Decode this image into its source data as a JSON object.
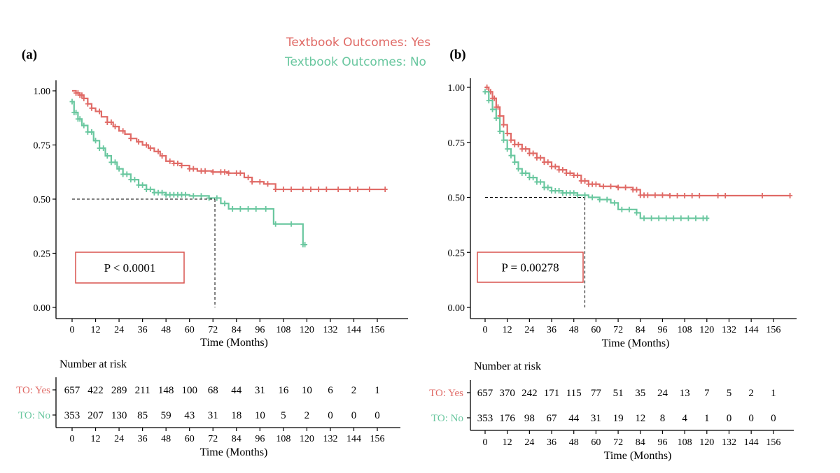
{
  "legend": {
    "items": [
      {
        "label": "Textbook Outcomes: Yes",
        "color": "#e06a66"
      },
      {
        "label": "Textbook Outcomes: No",
        "color": "#69c79f"
      }
    ]
  },
  "colors": {
    "yes": "#e06a66",
    "no": "#69c79f",
    "axis": "#000000",
    "pbox": "#d9534f"
  },
  "chart_data": [
    {
      "panel_label": "(a)",
      "type": "line",
      "subtype": "kaplan-meier step",
      "xlabel": "Time (Months)",
      "ylabel": "",
      "x_ticks": [
        0,
        12,
        24,
        36,
        48,
        60,
        72,
        84,
        96,
        108,
        120,
        132,
        144,
        156
      ],
      "y_ticks": [
        "0.00",
        "0.25",
        "0.50",
        "0.75",
        "1.00"
      ],
      "xlim": [
        0,
        170
      ],
      "ylim": [
        0,
        1
      ],
      "p_value_text": "P < 0.0001",
      "median_line": {
        "y": 0.5,
        "x": 73
      },
      "series": [
        {
          "name": "Textbook Outcomes: Yes",
          "color": "#e06a66",
          "points": [
            [
              0,
              1.0
            ],
            [
              2,
              0.99
            ],
            [
              4,
              0.98
            ],
            [
              6,
              0.965
            ],
            [
              8,
              0.94
            ],
            [
              10,
              0.92
            ],
            [
              12,
              0.905
            ],
            [
              15,
              0.88
            ],
            [
              18,
              0.855
            ],
            [
              21,
              0.835
            ],
            [
              24,
              0.815
            ],
            [
              27,
              0.8
            ],
            [
              30,
              0.78
            ],
            [
              33,
              0.765
            ],
            [
              36,
              0.75
            ],
            [
              39,
              0.735
            ],
            [
              42,
              0.72
            ],
            [
              45,
              0.7
            ],
            [
              48,
              0.675
            ],
            [
              52,
              0.665
            ],
            [
              56,
              0.655
            ],
            [
              60,
              0.64
            ],
            [
              64,
              0.63
            ],
            [
              72,
              0.625
            ],
            [
              80,
              0.62
            ],
            [
              88,
              0.6
            ],
            [
              92,
              0.58
            ],
            [
              98,
              0.57
            ],
            [
              104,
              0.545
            ],
            [
              160,
              0.545
            ]
          ],
          "censor_x": [
            2,
            3,
            4,
            5,
            6,
            8,
            10,
            14,
            18,
            20,
            22,
            26,
            30,
            34,
            38,
            40,
            44,
            46,
            50,
            52,
            54,
            56,
            60,
            62,
            66,
            68,
            72,
            76,
            78,
            80,
            84,
            86,
            90,
            92,
            96,
            100,
            104,
            108,
            112,
            118,
            122,
            126,
            130,
            136,
            142,
            146,
            152,
            160
          ]
        },
        {
          "name": "Textbook Outcomes: No",
          "color": "#69c79f",
          "points": [
            [
              0,
              0.95
            ],
            [
              1,
              0.9
            ],
            [
              3,
              0.87
            ],
            [
              5,
              0.84
            ],
            [
              8,
              0.81
            ],
            [
              11,
              0.77
            ],
            [
              14,
              0.735
            ],
            [
              17,
              0.7
            ],
            [
              20,
              0.67
            ],
            [
              23,
              0.64
            ],
            [
              26,
              0.615
            ],
            [
              30,
              0.59
            ],
            [
              34,
              0.565
            ],
            [
              38,
              0.545
            ],
            [
              42,
              0.53
            ],
            [
              48,
              0.52
            ],
            [
              60,
              0.515
            ],
            [
              70,
              0.505
            ],
            [
              76,
              0.48
            ],
            [
              80,
              0.455
            ],
            [
              102,
              0.455
            ],
            [
              103,
              0.385
            ],
            [
              116,
              0.385
            ],
            [
              118,
              0.29
            ],
            [
              120,
              0.29
            ]
          ],
          "censor_x": [
            0,
            1,
            2,
            3,
            4,
            6,
            8,
            10,
            12,
            14,
            16,
            18,
            20,
            22,
            24,
            26,
            28,
            30,
            32,
            34,
            36,
            38,
            40,
            42,
            44,
            46,
            48,
            50,
            52,
            54,
            56,
            58,
            62,
            66,
            70,
            74,
            78,
            82,
            86,
            90,
            94,
            99,
            104,
            112,
            118,
            119
          ]
        }
      ],
      "risk_table": {
        "title": "Number at risk",
        "x_ticks": [
          0,
          12,
          24,
          36,
          48,
          60,
          72,
          84,
          96,
          108,
          120,
          132,
          144,
          156
        ],
        "xlabel": "Time (Months)",
        "rows": [
          {
            "label": "TO: Yes",
            "color": "#e06a66",
            "values": [
              657,
              422,
              289,
              211,
              148,
              100,
              68,
              44,
              31,
              16,
              10,
              6,
              2,
              1
            ]
          },
          {
            "label": "TO: No",
            "color": "#69c79f",
            "values": [
              353,
              207,
              130,
              85,
              59,
              43,
              31,
              18,
              10,
              5,
              2,
              0,
              0,
              0
            ]
          }
        ]
      }
    },
    {
      "panel_label": "(b)",
      "type": "line",
      "subtype": "kaplan-meier step",
      "xlabel": "Time (Months)",
      "ylabel": "",
      "x_ticks": [
        0,
        12,
        24,
        36,
        48,
        60,
        72,
        84,
        96,
        108,
        120,
        132,
        144,
        156
      ],
      "y_ticks": [
        "0.00",
        "0.25",
        "0.50",
        "0.75",
        "1.00"
      ],
      "xlim": [
        0,
        170
      ],
      "ylim": [
        0,
        1
      ],
      "p_value_text": "P = 0.00278",
      "median_line": {
        "y": 0.5,
        "x": 54
      },
      "series": [
        {
          "name": "Textbook Outcomes: Yes",
          "color": "#e06a66",
          "points": [
            [
              0,
              1.0
            ],
            [
              2,
              0.98
            ],
            [
              4,
              0.95
            ],
            [
              6,
              0.91
            ],
            [
              8,
              0.87
            ],
            [
              10,
              0.83
            ],
            [
              12,
              0.79
            ],
            [
              14,
              0.76
            ],
            [
              16,
              0.74
            ],
            [
              20,
              0.72
            ],
            [
              24,
              0.7
            ],
            [
              28,
              0.68
            ],
            [
              32,
              0.66
            ],
            [
              36,
              0.64
            ],
            [
              40,
              0.625
            ],
            [
              44,
              0.61
            ],
            [
              48,
              0.6
            ],
            [
              52,
              0.575
            ],
            [
              56,
              0.56
            ],
            [
              62,
              0.55
            ],
            [
              72,
              0.545
            ],
            [
              80,
              0.535
            ],
            [
              84,
              0.51
            ],
            [
              100,
              0.508
            ],
            [
              165,
              0.508
            ]
          ],
          "censor_x": [
            1,
            2,
            3,
            4,
            5,
            6,
            7,
            8,
            10,
            12,
            14,
            16,
            18,
            20,
            22,
            24,
            26,
            28,
            30,
            32,
            34,
            36,
            38,
            40,
            42,
            44,
            46,
            48,
            50,
            52,
            54,
            56,
            58,
            60,
            64,
            68,
            72,
            76,
            80,
            82,
            84,
            86,
            88,
            92,
            96,
            100,
            104,
            108,
            112,
            116,
            126,
            130,
            150,
            165
          ]
        },
        {
          "name": "Textbook Outcomes: No",
          "color": "#69c79f",
          "points": [
            [
              0,
              0.98
            ],
            [
              2,
              0.94
            ],
            [
              4,
              0.9
            ],
            [
              6,
              0.86
            ],
            [
              8,
              0.8
            ],
            [
              10,
              0.76
            ],
            [
              12,
              0.72
            ],
            [
              14,
              0.69
            ],
            [
              16,
              0.66
            ],
            [
              18,
              0.63
            ],
            [
              20,
              0.61
            ],
            [
              24,
              0.59
            ],
            [
              28,
              0.57
            ],
            [
              32,
              0.545
            ],
            [
              36,
              0.53
            ],
            [
              42,
              0.52
            ],
            [
              50,
              0.51
            ],
            [
              56,
              0.5
            ],
            [
              62,
              0.49
            ],
            [
              68,
              0.475
            ],
            [
              72,
              0.445
            ],
            [
              82,
              0.43
            ],
            [
              84,
              0.405
            ],
            [
              120,
              0.405
            ]
          ],
          "censor_x": [
            0,
            2,
            4,
            6,
            8,
            10,
            12,
            14,
            16,
            18,
            20,
            22,
            24,
            26,
            28,
            30,
            32,
            34,
            36,
            38,
            40,
            42,
            44,
            46,
            48,
            50,
            54,
            58,
            62,
            66,
            70,
            74,
            78,
            82,
            86,
            90,
            94,
            98,
            102,
            106,
            110,
            114,
            118,
            120
          ]
        }
      ],
      "risk_table": {
        "title": "Number at risk",
        "x_ticks": [
          0,
          12,
          24,
          36,
          48,
          60,
          72,
          84,
          96,
          108,
          120,
          132,
          144,
          156
        ],
        "xlabel": "Time (Months)",
        "rows": [
          {
            "label": "TO: Yes",
            "color": "#e06a66",
            "values": [
              657,
              370,
              242,
              171,
              115,
              77,
              51,
              35,
              24,
              13,
              7,
              5,
              2,
              1
            ]
          },
          {
            "label": "TO: No",
            "color": "#69c79f",
            "values": [
              353,
              176,
              98,
              67,
              44,
              31,
              19,
              12,
              8,
              4,
              1,
              0,
              0,
              0
            ]
          }
        ]
      }
    }
  ]
}
